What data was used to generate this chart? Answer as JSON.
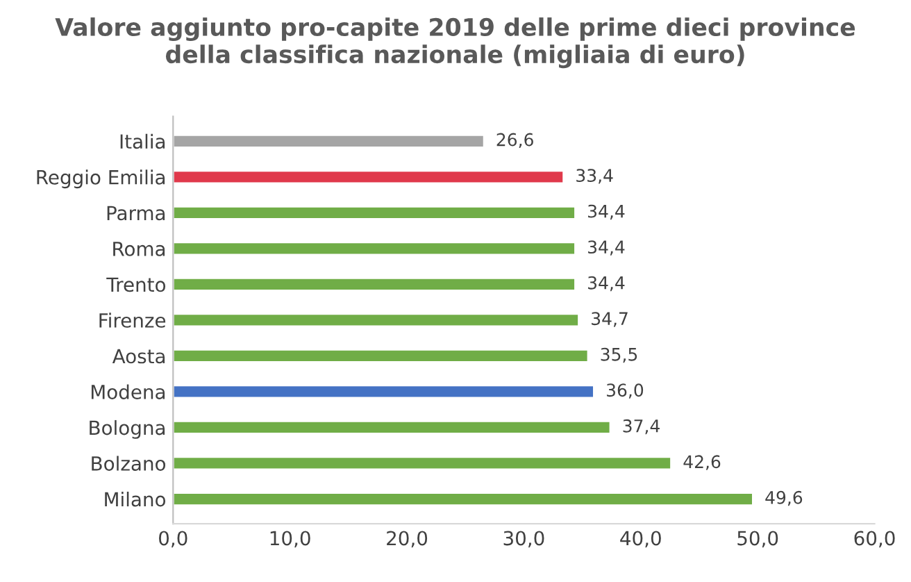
{
  "chart_data": {
    "type": "bar",
    "orientation": "horizontal",
    "title": "Valore aggiunto pro-capite 2019 delle prime dieci province\ndella classifica nazionale (migliaia di euro)",
    "categories": [
      "Italia",
      "Reggio Emilia",
      "Parma",
      "Roma",
      "Trento",
      "Firenze",
      "Aosta",
      "Modena",
      "Bologna",
      "Bolzano",
      "Milano"
    ],
    "values": [
      26.6,
      33.4,
      34.4,
      34.4,
      34.4,
      34.7,
      35.5,
      36.0,
      37.4,
      42.6,
      49.6
    ],
    "value_labels": [
      "26,6",
      "33,4",
      "34,4",
      "34,4",
      "34,4",
      "34,7",
      "35,5",
      "36,0",
      "37,4",
      "42,6",
      "49,6"
    ],
    "colors": [
      "#a5a5a5",
      "#e0394b",
      "#70ad47",
      "#70ad47",
      "#70ad47",
      "#70ad47",
      "#70ad47",
      "#4472c4",
      "#70ad47",
      "#70ad47",
      "#70ad47"
    ],
    "xlim": [
      0,
      60
    ],
    "xticks": [
      {
        "value": 0,
        "label": "0,0"
      },
      {
        "value": 10,
        "label": "10,0"
      },
      {
        "value": 20,
        "label": "20,0"
      },
      {
        "value": 30,
        "label": "30,0"
      },
      {
        "value": 40,
        "label": "40,0"
      },
      {
        "value": 50,
        "label": "50,0"
      },
      {
        "value": 60,
        "label": "60,0"
      }
    ],
    "grid": false,
    "legend": false
  }
}
